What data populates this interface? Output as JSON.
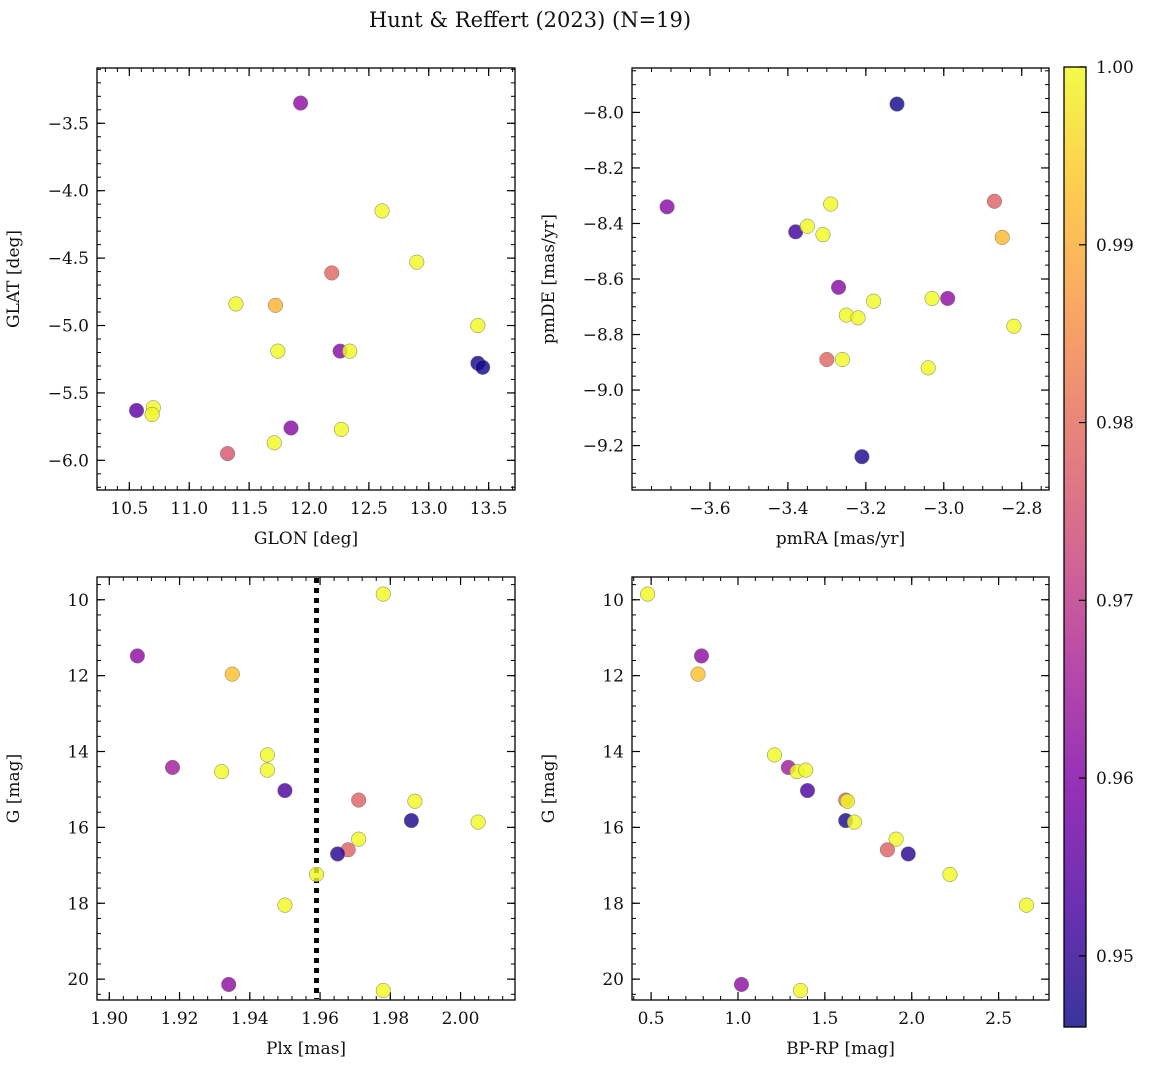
{
  "title": "Hunt & Reffert (2023) (N=19)",
  "colorbar": {
    "range": [
      0.946,
      1.0
    ],
    "ticks": [
      0.95,
      0.96,
      0.97,
      0.98,
      0.99,
      1.0
    ],
    "tick_labels": [
      "0.95",
      "0.96",
      "0.97",
      "0.98",
      "0.99",
      "1.00"
    ],
    "stops": [
      {
        "offset": 0.0,
        "color": "#0d0887"
      },
      {
        "offset": 0.13,
        "color": "#4c02a1"
      },
      {
        "offset": 0.25,
        "color": "#7e03a8"
      },
      {
        "offset": 0.38,
        "color": "#a92395"
      },
      {
        "offset": 0.5,
        "color": "#cc4778"
      },
      {
        "offset": 0.63,
        "color": "#e56b5d"
      },
      {
        "offset": 0.75,
        "color": "#f89441"
      },
      {
        "offset": 0.88,
        "color": "#fdc328"
      },
      {
        "offset": 1.0,
        "color": "#f0f921"
      }
    ]
  },
  "chart_data": [
    {
      "type": "scatter",
      "xlabel": "GLON [deg]",
      "ylabel": "GLAT [deg]",
      "xlim": [
        10.23,
        13.72
      ],
      "ylim": [
        -6.22,
        -3.09
      ],
      "y_inverted": false,
      "xticks": [
        10.5,
        11.0,
        11.5,
        12.0,
        12.5,
        13.0,
        13.5
      ],
      "xtick_labels": [
        "10.5",
        "11.0",
        "11.5",
        "12.0",
        "12.5",
        "13.0",
        "13.5"
      ],
      "yticks": [
        -6.0,
        -5.5,
        -5.0,
        -4.5,
        -4.0,
        -3.5
      ],
      "ytick_labels": [
        "−6.0",
        "−5.5",
        "−5.0",
        "−4.5",
        "−4.0",
        "−3.5"
      ],
      "x_minor": 0.1,
      "y_minor": 0.1,
      "points": [
        {
          "x": 11.93,
          "y": -3.35,
          "c": 0.962
        },
        {
          "x": 12.61,
          "y": -4.15,
          "c": 1.0
        },
        {
          "x": 12.9,
          "y": -4.53,
          "c": 1.0
        },
        {
          "x": 12.19,
          "y": -4.61,
          "c": 0.979
        },
        {
          "x": 11.39,
          "y": -4.84,
          "c": 1.0
        },
        {
          "x": 11.72,
          "y": -4.85,
          "c": 0.991
        },
        {
          "x": 13.41,
          "y": -5.0,
          "c": 1.0
        },
        {
          "x": 11.74,
          "y": -5.19,
          "c": 1.0
        },
        {
          "x": 12.26,
          "y": -5.19,
          "c": 0.961
        },
        {
          "x": 12.34,
          "y": -5.19,
          "c": 1.0
        },
        {
          "x": 13.41,
          "y": -5.28,
          "c": 0.947
        },
        {
          "x": 13.45,
          "y": -5.31,
          "c": 0.947
        },
        {
          "x": 10.56,
          "y": -5.63,
          "c": 0.955
        },
        {
          "x": 10.7,
          "y": -5.61,
          "c": 1.0
        },
        {
          "x": 10.69,
          "y": -5.66,
          "c": 1.0
        },
        {
          "x": 11.85,
          "y": -5.76,
          "c": 0.961
        },
        {
          "x": 12.27,
          "y": -5.77,
          "c": 1.0
        },
        {
          "x": 11.71,
          "y": -5.87,
          "c": 1.0
        },
        {
          "x": 11.32,
          "y": -5.95,
          "c": 0.976
        }
      ]
    },
    {
      "type": "scatter",
      "xlabel": "pmRA [mas/yr]",
      "ylabel": "pmDE [mas/yr]",
      "xlim": [
        -3.8,
        -2.73
      ],
      "ylim": [
        -9.36,
        -7.84
      ],
      "y_inverted": false,
      "xticks": [
        -3.6,
        -3.4,
        -3.2,
        -3.0,
        -2.8
      ],
      "xtick_labels": [
        "−3.6",
        "−3.4",
        "−3.2",
        "−3.0",
        "−2.8"
      ],
      "yticks": [
        -9.2,
        -9.0,
        -8.8,
        -8.6,
        -8.4,
        -8.2,
        -8.0
      ],
      "ytick_labels": [
        "−9.2",
        "−9.0",
        "−8.8",
        "−8.6",
        "−8.4",
        "−8.2",
        "−8.0"
      ],
      "x_minor": 0.05,
      "y_minor": 0.05,
      "points": [
        {
          "x": -3.12,
          "y": -7.97,
          "c": 0.947
        },
        {
          "x": -3.71,
          "y": -8.34,
          "c": 0.961
        },
        {
          "x": -3.38,
          "y": -8.43,
          "c": 0.952
        },
        {
          "x": -3.35,
          "y": -8.41,
          "c": 1.0
        },
        {
          "x": -3.31,
          "y": -8.44,
          "c": 1.0
        },
        {
          "x": -3.29,
          "y": -8.33,
          "c": 1.0
        },
        {
          "x": -2.87,
          "y": -8.32,
          "c": 0.978
        },
        {
          "x": -2.85,
          "y": -8.45,
          "c": 0.992
        },
        {
          "x": -3.27,
          "y": -8.63,
          "c": 0.961
        },
        {
          "x": -3.25,
          "y": -8.73,
          "c": 1.0
        },
        {
          "x": -3.22,
          "y": -8.74,
          "c": 1.0
        },
        {
          "x": -3.18,
          "y": -8.68,
          "c": 1.0
        },
        {
          "x": -3.03,
          "y": -8.67,
          "c": 1.0
        },
        {
          "x": -2.99,
          "y": -8.67,
          "c": 0.962
        },
        {
          "x": -2.82,
          "y": -8.77,
          "c": 1.0
        },
        {
          "x": -3.3,
          "y": -8.89,
          "c": 0.979
        },
        {
          "x": -3.26,
          "y": -8.89,
          "c": 1.0
        },
        {
          "x": -3.04,
          "y": -8.92,
          "c": 1.0
        },
        {
          "x": -3.21,
          "y": -9.24,
          "c": 0.948
        }
      ]
    },
    {
      "type": "scatter",
      "xlabel": "Plx [mas]",
      "ylabel": "G [mag]",
      "xlim": [
        1.8965,
        2.0155
      ],
      "ylim": [
        9.4,
        20.55
      ],
      "y_inverted": true,
      "xticks": [
        1.9,
        1.92,
        1.94,
        1.96,
        1.98,
        2.0
      ],
      "xtick_labels": [
        "1.90",
        "1.92",
        "1.94",
        "1.96",
        "1.98",
        "2.00"
      ],
      "yticks": [
        10,
        12,
        14,
        16,
        18,
        20
      ],
      "ytick_labels": [
        "10",
        "12",
        "14",
        "16",
        "18",
        "20"
      ],
      "x_minor": 0.004,
      "y_minor": 0.4,
      "vline": {
        "x": 1.959,
        "style": "dotted",
        "color": "#000000"
      },
      "points": [
        {
          "x": 1.978,
          "y": 9.85,
          "c": 1.0
        },
        {
          "x": 1.908,
          "y": 11.48,
          "c": 0.962
        },
        {
          "x": 1.935,
          "y": 11.96,
          "c": 0.993
        },
        {
          "x": 1.945,
          "y": 14.09,
          "c": 1.0
        },
        {
          "x": 1.918,
          "y": 14.42,
          "c": 0.965
        },
        {
          "x": 1.932,
          "y": 14.53,
          "c": 1.0
        },
        {
          "x": 1.945,
          "y": 14.49,
          "c": 1.0
        },
        {
          "x": 1.95,
          "y": 15.03,
          "c": 0.953
        },
        {
          "x": 1.971,
          "y": 15.28,
          "c": 0.978
        },
        {
          "x": 1.987,
          "y": 15.31,
          "c": 1.0
        },
        {
          "x": 1.986,
          "y": 15.82,
          "c": 0.948
        },
        {
          "x": 2.005,
          "y": 15.86,
          "c": 1.0
        },
        {
          "x": 1.971,
          "y": 16.31,
          "c": 1.0
        },
        {
          "x": 1.968,
          "y": 16.59,
          "c": 0.978
        },
        {
          "x": 1.965,
          "y": 16.7,
          "c": 0.949
        },
        {
          "x": 1.959,
          "y": 17.24,
          "c": 1.0
        },
        {
          "x": 1.95,
          "y": 18.05,
          "c": 1.0
        },
        {
          "x": 1.934,
          "y": 20.14,
          "c": 0.962
        },
        {
          "x": 1.978,
          "y": 20.3,
          "c": 1.0
        }
      ]
    },
    {
      "type": "scatter",
      "xlabel": "BP-RP [mag]",
      "ylabel": "G [mag]",
      "xlim": [
        0.39,
        2.79
      ],
      "ylim": [
        9.4,
        20.55
      ],
      "y_inverted": true,
      "xticks": [
        0.5,
        1.0,
        1.5,
        2.0,
        2.5
      ],
      "xtick_labels": [
        "0.5",
        "1.0",
        "1.5",
        "2.0",
        "2.5"
      ],
      "yticks": [
        10,
        12,
        14,
        16,
        18,
        20
      ],
      "ytick_labels": [
        "10",
        "12",
        "14",
        "16",
        "18",
        "20"
      ],
      "x_minor": 0.1,
      "y_minor": 0.4,
      "points": [
        {
          "x": 0.48,
          "y": 9.85,
          "c": 1.0
        },
        {
          "x": 0.79,
          "y": 11.48,
          "c": 0.962
        },
        {
          "x": 0.77,
          "y": 11.96,
          "c": 0.993
        },
        {
          "x": 1.21,
          "y": 14.09,
          "c": 1.0
        },
        {
          "x": 1.29,
          "y": 14.42,
          "c": 0.965
        },
        {
          "x": 1.34,
          "y": 14.53,
          "c": 1.0
        },
        {
          "x": 1.39,
          "y": 14.49,
          "c": 1.0
        },
        {
          "x": 1.4,
          "y": 15.03,
          "c": 0.953
        },
        {
          "x": 1.62,
          "y": 15.28,
          "c": 0.978
        },
        {
          "x": 1.63,
          "y": 15.31,
          "c": 1.0
        },
        {
          "x": 1.62,
          "y": 15.82,
          "c": 0.948
        },
        {
          "x": 1.67,
          "y": 15.86,
          "c": 1.0
        },
        {
          "x": 1.91,
          "y": 16.31,
          "c": 1.0
        },
        {
          "x": 1.86,
          "y": 16.59,
          "c": 0.978
        },
        {
          "x": 1.98,
          "y": 16.7,
          "c": 0.949
        },
        {
          "x": 2.22,
          "y": 17.24,
          "c": 1.0
        },
        {
          "x": 2.66,
          "y": 18.05,
          "c": 1.0
        },
        {
          "x": 1.02,
          "y": 20.14,
          "c": 0.962
        },
        {
          "x": 1.36,
          "y": 20.3,
          "c": 1.0
        }
      ]
    }
  ]
}
